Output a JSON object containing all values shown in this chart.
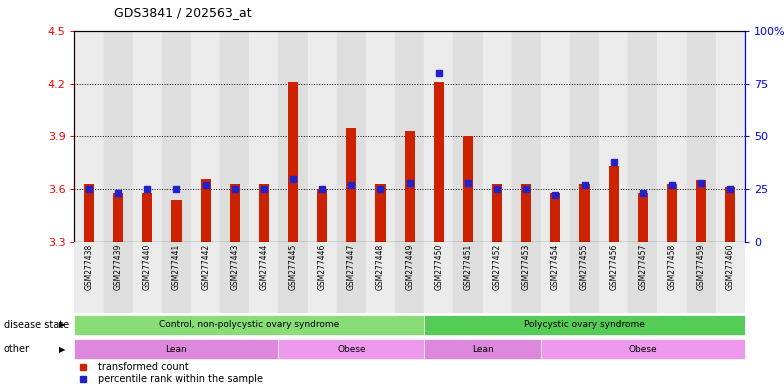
{
  "title": "GDS3841 / 202563_at",
  "samples": [
    "GSM277438",
    "GSM277439",
    "GSM277440",
    "GSM277441",
    "GSM277442",
    "GSM277443",
    "GSM277444",
    "GSM277445",
    "GSM277446",
    "GSM277447",
    "GSM277448",
    "GSM277449",
    "GSM277450",
    "GSM277451",
    "GSM277452",
    "GSM277453",
    "GSM277454",
    "GSM277455",
    "GSM277456",
    "GSM277457",
    "GSM277458",
    "GSM277459",
    "GSM277460"
  ],
  "transformed_counts": [
    3.63,
    3.58,
    3.58,
    3.54,
    3.66,
    3.63,
    3.63,
    4.21,
    3.6,
    3.95,
    3.63,
    3.93,
    4.21,
    3.9,
    3.63,
    3.63,
    3.58,
    3.63,
    3.73,
    3.58,
    3.63,
    3.65,
    3.61
  ],
  "percentile_ranks": [
    25,
    23,
    25,
    25,
    27,
    25,
    25,
    30,
    25,
    27,
    25,
    28,
    80,
    28,
    25,
    25,
    22,
    27,
    38,
    23,
    27,
    28,
    25
  ],
  "ylim_left": [
    3.3,
    4.5
  ],
  "ylim_right": [
    0,
    100
  ],
  "yticks_left": [
    3.3,
    3.6,
    3.9,
    4.2,
    4.5
  ],
  "yticks_right": [
    0,
    25,
    50,
    75,
    100
  ],
  "ytick_labels_right": [
    "0",
    "25",
    "50",
    "75",
    "100%"
  ],
  "grid_vals": [
    3.6,
    3.9,
    4.2
  ],
  "bar_color": "#CC2200",
  "dot_color": "#2222CC",
  "disease_state_groups": [
    {
      "label": "Control, non-polycystic ovary syndrome",
      "start": 0,
      "end": 12,
      "color": "#88DD77"
    },
    {
      "label": "Polycystic ovary syndrome",
      "start": 12,
      "end": 23,
      "color": "#55CC55"
    }
  ],
  "other_groups": [
    {
      "label": "Lean",
      "start": 0,
      "end": 7,
      "color": "#DD88DD"
    },
    {
      "label": "Obese",
      "start": 7,
      "end": 12,
      "color": "#EE99EE"
    },
    {
      "label": "Lean",
      "start": 12,
      "end": 16,
      "color": "#DD88DD"
    },
    {
      "label": "Obese",
      "start": 16,
      "end": 23,
      "color": "#EE99EE"
    }
  ],
  "legend_items": [
    {
      "label": "transformed count",
      "color": "#CC2200"
    },
    {
      "label": "percentile rank within the sample",
      "color": "#2222CC"
    }
  ]
}
